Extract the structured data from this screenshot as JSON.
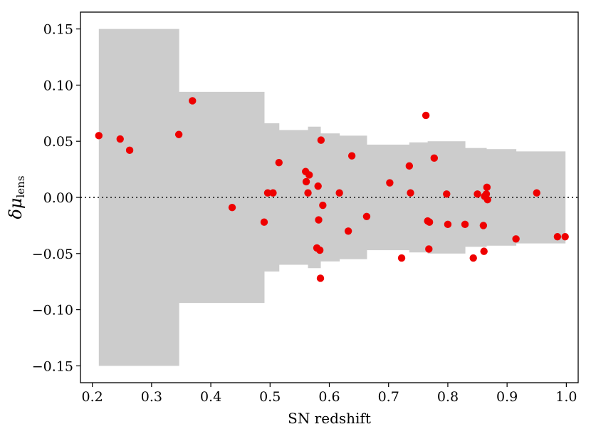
{
  "chart_data": {
    "type": "scatter",
    "xlabel": "SN redshift",
    "ylabel_main": "δμ",
    "ylabel_sub": "lens",
    "xlim": [
      0.18,
      1.02
    ],
    "ylim": [
      -0.165,
      0.165
    ],
    "x_ticks": [
      0.2,
      0.3,
      0.4,
      0.5,
      0.6,
      0.7,
      0.8,
      0.9,
      1.0
    ],
    "x_tick_labels": [
      "0.2",
      "0.3",
      "0.4",
      "0.5",
      "0.6",
      "0.7",
      "0.8",
      "0.9",
      "1.0"
    ],
    "y_ticks": [
      -0.15,
      -0.1,
      -0.05,
      0.0,
      0.05,
      0.1,
      0.15
    ],
    "y_tick_labels": [
      "−0.15",
      "−0.10",
      "−0.05",
      "0.00",
      "0.05",
      "0.10",
      "0.15"
    ],
    "grid": false,
    "reference_line": {
      "y": 0.0,
      "style": "dotted",
      "color": "#444444"
    },
    "band": {
      "color": "#cccccc",
      "segments": [
        {
          "x0": 0.211,
          "x1": 0.346,
          "half_width": 0.15
        },
        {
          "x0": 0.346,
          "x1": 0.49,
          "half_width": 0.094
        },
        {
          "x0": 0.49,
          "x1": 0.515,
          "half_width": 0.066
        },
        {
          "x0": 0.515,
          "x1": 0.564,
          "half_width": 0.06
        },
        {
          "x0": 0.564,
          "x1": 0.585,
          "half_width": 0.063
        },
        {
          "x0": 0.585,
          "x1": 0.617,
          "half_width": 0.057
        },
        {
          "x0": 0.617,
          "x1": 0.663,
          "half_width": 0.055
        },
        {
          "x0": 0.663,
          "x1": 0.735,
          "half_width": 0.047
        },
        {
          "x0": 0.735,
          "x1": 0.766,
          "half_width": 0.049
        },
        {
          "x0": 0.766,
          "x1": 0.829,
          "half_width": 0.05
        },
        {
          "x0": 0.829,
          "x1": 0.865,
          "half_width": 0.044
        },
        {
          "x0": 0.865,
          "x1": 0.915,
          "half_width": 0.043
        },
        {
          "x0": 0.915,
          "x1": 0.998,
          "half_width": 0.041
        }
      ]
    },
    "points": {
      "color": "#ee0000",
      "x": [
        0.211,
        0.247,
        0.263,
        0.346,
        0.369,
        0.436,
        0.49,
        0.496,
        0.505,
        0.515,
        0.56,
        0.561,
        0.564,
        0.566,
        0.579,
        0.581,
        0.582,
        0.584,
        0.585,
        0.586,
        0.589,
        0.617,
        0.632,
        0.638,
        0.663,
        0.702,
        0.722,
        0.735,
        0.737,
        0.763,
        0.766,
        0.768,
        0.769,
        0.777,
        0.798,
        0.8,
        0.829,
        0.843,
        0.85,
        0.86,
        0.861,
        0.862,
        0.865,
        0.866,
        0.867,
        0.915,
        0.95,
        0.985,
        0.998
      ],
      "y": [
        0.055,
        0.052,
        0.042,
        0.056,
        0.086,
        -0.009,
        -0.022,
        0.004,
        0.004,
        0.031,
        0.023,
        0.014,
        0.004,
        0.02,
        -0.045,
        0.01,
        -0.02,
        -0.047,
        -0.072,
        0.051,
        -0.007,
        0.004,
        -0.03,
        0.037,
        -0.017,
        0.013,
        -0.054,
        0.028,
        0.004,
        0.073,
        -0.021,
        -0.046,
        -0.022,
        0.035,
        0.003,
        -0.024,
        -0.024,
        -0.054,
        0.003,
        -0.025,
        -0.048,
        0.001,
        0.003,
        0.009,
        -0.002,
        -0.037,
        0.004,
        -0.035,
        -0.035
      ]
    }
  }
}
